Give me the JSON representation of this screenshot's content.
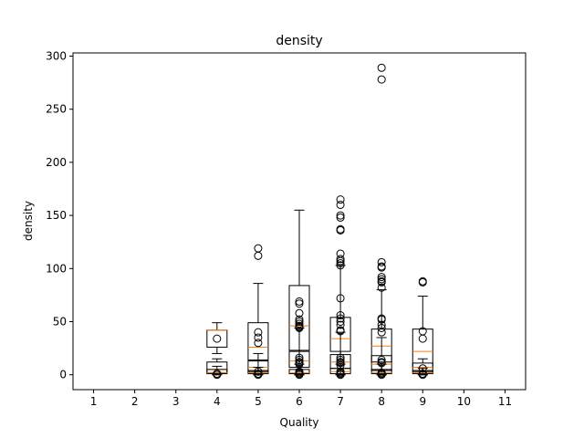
{
  "chart_data": {
    "type": "boxplot",
    "title": "density",
    "xlabel": "Quality",
    "ylabel": "density",
    "x_ticks": [
      "1",
      "2",
      "3",
      "4",
      "5",
      "6",
      "7",
      "8",
      "9",
      "10",
      "11"
    ],
    "y_ticks": [
      0,
      50,
      100,
      150,
      200,
      250,
      300
    ],
    "xlim": [
      0.5,
      11.5
    ],
    "ylim": [
      -14,
      303
    ],
    "grid": false,
    "legend": "none",
    "colors": {
      "box": "#000000",
      "median": "#ff7f0e",
      "outlier": "#000000"
    },
    "series": [
      {
        "x": 4,
        "boxes": [
          {
            "q1": 26,
            "median": 42,
            "q3": 42,
            "wlow": 20,
            "whigh": 49,
            "outliers": [
              34
            ]
          },
          {
            "q1": 2,
            "median": 5,
            "q3": 12,
            "wlow": 0,
            "whigh": 15,
            "outliers": []
          },
          {
            "q1": 1,
            "median": 2,
            "q3": 5,
            "wlow": 0,
            "whigh": 8,
            "outliers": [
              0,
              1
            ]
          }
        ]
      },
      {
        "x": 5,
        "boxes": [
          {
            "q1": 14,
            "median": 26,
            "q3": 49,
            "wlow": 0,
            "whigh": 86,
            "outliers": [
              112,
              119,
              40,
              35,
              30
            ]
          },
          {
            "q1": 3,
            "median": 7,
            "q3": 13,
            "wlow": 0,
            "whigh": 20,
            "outliers": []
          },
          {
            "q1": 1,
            "median": 2,
            "q3": 4,
            "wlow": 0,
            "whigh": 7,
            "outliers": [
              0,
              1,
              3
            ]
          }
        ]
      },
      {
        "x": 6,
        "boxes": [
          {
            "q1": 23,
            "median": 46,
            "q3": 84,
            "wlow": 0,
            "whigh": 155,
            "outliers": []
          },
          {
            "q1": 7,
            "median": 13,
            "q3": 22,
            "wlow": 0,
            "whigh": 44,
            "outliers": [
              69,
              67,
              58,
              52,
              50,
              48,
              46,
              45,
              44
            ]
          },
          {
            "q1": 1,
            "median": 2,
            "q3": 5,
            "wlow": 0,
            "whigh": 10,
            "outliers": [
              16,
              14,
              12,
              11,
              10,
              0,
              1,
              2,
              3
            ]
          }
        ]
      },
      {
        "x": 7,
        "boxes": [
          {
            "q1": 22,
            "median": 34,
            "q3": 54,
            "wlow": 0,
            "whigh": 103,
            "outliers": [
              165,
              160,
              150,
              148,
              137,
              136,
              114,
              109,
              107,
              105,
              103
            ]
          },
          {
            "q1": 6,
            "median": 12,
            "q3": 19,
            "wlow": 0,
            "whigh": 40,
            "outliers": [
              72,
              56,
              53,
              50,
              47,
              42,
              41
            ]
          },
          {
            "q1": 1,
            "median": 3,
            "q3": 6,
            "wlow": 0,
            "whigh": 10,
            "outliers": [
              16,
              14,
              12,
              11,
              9,
              0,
              1,
              2,
              3
            ]
          }
        ]
      },
      {
        "x": 8,
        "boxes": [
          {
            "q1": 12,
            "median": 27,
            "q3": 43,
            "wlow": 0,
            "whigh": 80,
            "outliers": [
              289,
              278,
              106,
              102,
              101,
              92,
              90,
              88,
              87,
              82
            ]
          },
          {
            "q1": 4,
            "median": 10,
            "q3": 18,
            "wlow": 0,
            "whigh": 35,
            "outliers": [
              53,
              52,
              47,
              44,
              40
            ]
          },
          {
            "q1": 1,
            "median": 2,
            "q3": 5,
            "wlow": 0,
            "whigh": 10,
            "outliers": [
              14,
              12,
              11,
              0,
              1,
              2
            ]
          }
        ]
      },
      {
        "x": 9,
        "boxes": [
          {
            "q1": 7,
            "median": 22,
            "q3": 43,
            "wlow": 0,
            "whigh": 74,
            "outliers": [
              88,
              87,
              41,
              34
            ]
          },
          {
            "q1": 3,
            "median": 7,
            "q3": 11,
            "wlow": 0,
            "whigh": 15,
            "outliers": []
          },
          {
            "q1": 1,
            "median": 2,
            "q3": 4,
            "wlow": 0,
            "whigh": 6,
            "outliers": [
              6,
              0,
              1
            ]
          }
        ]
      }
    ]
  }
}
